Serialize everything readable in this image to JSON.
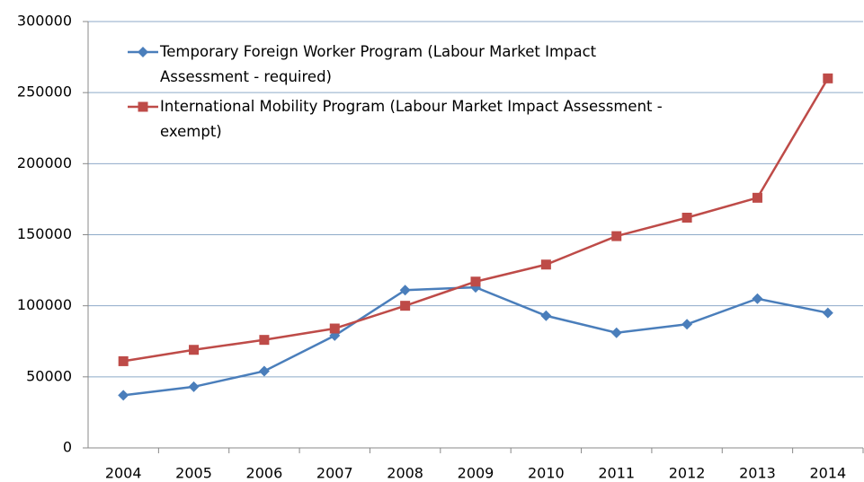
{
  "chart_data": {
    "type": "line",
    "categories": [
      "2004",
      "2005",
      "2006",
      "2007",
      "2008",
      "2009",
      "2010",
      "2011",
      "2012",
      "2013",
      "2014"
    ],
    "series": [
      {
        "name": "Temporary Foreign Worker Program (Labour Market Impact Assessment - required)",
        "color": "#4a7ebb",
        "marker": "diamond",
        "values": [
          37000,
          43000,
          54000,
          79000,
          111000,
          113000,
          93000,
          81000,
          87000,
          105000,
          95000
        ]
      },
      {
        "name": "International Mobility Program (Labour Market Impact Assessment - exempt)",
        "color": "#be4b48",
        "marker": "square",
        "values": [
          61000,
          69000,
          76000,
          84000,
          100000,
          117000,
          129000,
          149000,
          162000,
          176000,
          260000
        ]
      }
    ],
    "ylim": [
      0,
      300000
    ],
    "yticks": [
      0,
      50000,
      100000,
      150000,
      200000,
      250000,
      300000
    ],
    "grid": true
  }
}
